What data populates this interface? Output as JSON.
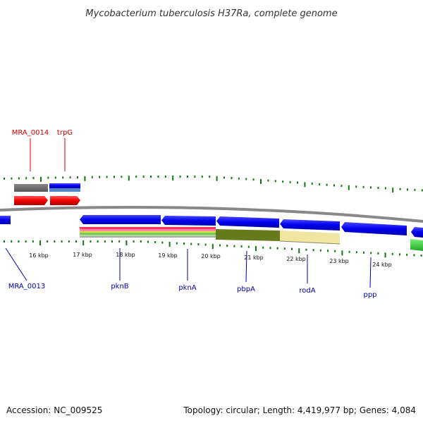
{
  "title": "Mycobacterium tuberculosis H37Ra, complete genome",
  "footer": {
    "accession": "Accession: NC_009525",
    "summary": "Topology: circular; Length: 4,419,977 bp; Genes: 4,084"
  },
  "colors": {
    "forward_label": "#cc0000",
    "reverse_label": "#0000aa",
    "tick": "#117711",
    "backbone": "#888888",
    "gene_blue": "#0000ee",
    "gene_red": "#ee0000",
    "gene_gray": "#666666",
    "gene_green": "#33cc33",
    "band_olive": "#667a1e",
    "band_pale": "#f0e6a0"
  },
  "ticks": [
    {
      "label": "16 kbp"
    },
    {
      "label": "17 kbp"
    },
    {
      "label": "18 kbp"
    },
    {
      "label": "19 kbp"
    },
    {
      "label": "20 kbp"
    },
    {
      "label": "21 kbp"
    },
    {
      "label": "22 kbp"
    },
    {
      "label": "23 kbp"
    },
    {
      "label": "24 kbp"
    }
  ],
  "forward_labels": [
    {
      "name": "MRA_0014"
    },
    {
      "name": "trpG"
    }
  ],
  "reverse_labels": [
    {
      "name": "MRA_0013"
    },
    {
      "name": "pknB"
    },
    {
      "name": "pknA"
    },
    {
      "name": "pbpA"
    },
    {
      "name": "rodA"
    },
    {
      "name": "ppp"
    }
  ]
}
